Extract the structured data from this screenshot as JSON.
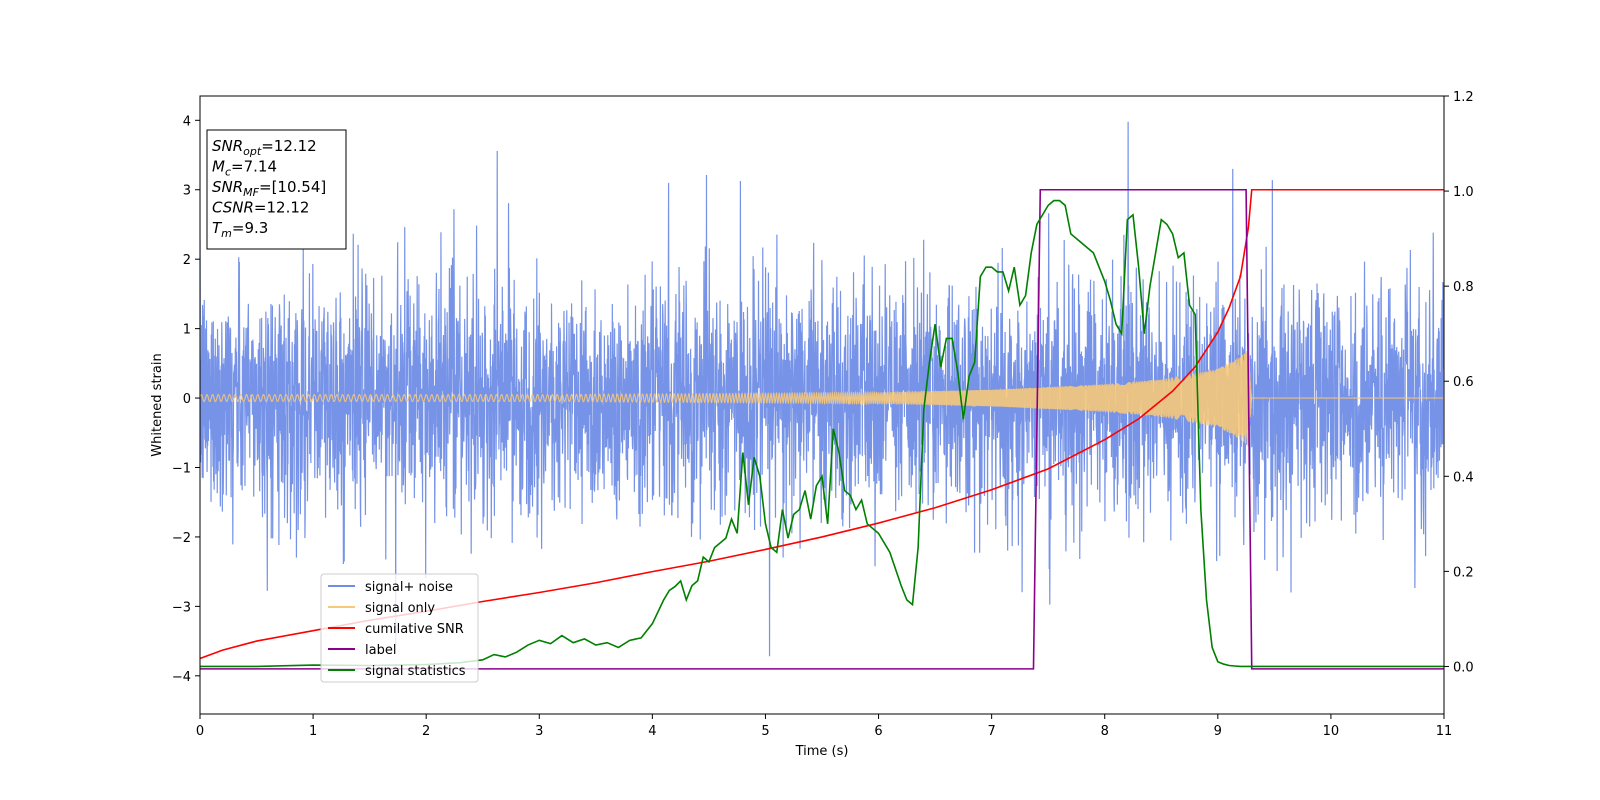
{
  "chart_data": {
    "type": "line",
    "xlabel": "Time (s)",
    "ylabel": "Whitened strain",
    "xlim": [
      0,
      11
    ],
    "ylim": [
      -4.55,
      4.35
    ],
    "y2lim": [
      -0.1,
      1.2
    ],
    "grid": false,
    "legend_position": "lower-left",
    "x_ticks": [
      0,
      1,
      2,
      3,
      4,
      5,
      6,
      7,
      8,
      9,
      10,
      11
    ],
    "y_ticks": [
      4,
      3,
      2,
      1,
      0,
      -1,
      -2,
      -3,
      -4
    ],
    "y_tick_labels": [
      "4",
      "3",
      "2",
      "1",
      "0",
      "−1",
      "−2",
      "−3",
      "−4"
    ],
    "y2_ticks": [
      1.2,
      1.0,
      0.8,
      0.6,
      0.4,
      0.2,
      0.0
    ],
    "y2_tick_labels": [
      "1.2",
      "1.0",
      "0.8",
      "0.6",
      "0.4",
      "0.2",
      "0.0"
    ],
    "annotation": {
      "lines": [
        {
          "base": "SNR",
          "sub": "opt",
          "rest": "=12.12"
        },
        {
          "base": "M",
          "sub": "c",
          "rest": "=7.14"
        },
        {
          "base": "SNR",
          "sub": "MF",
          "rest": "=[10.54]"
        },
        {
          "base": "CSNR",
          "sub": "",
          "rest": "=12.12"
        },
        {
          "base": "T",
          "sub": "m",
          "rest": "=9.3"
        }
      ]
    },
    "series": [
      {
        "name": "signal+ noise",
        "color": "#6f8de6",
        "axis": "left",
        "kind": "noise",
        "noise_std": 1.05,
        "noise_peak_max": 3.98,
        "noise_peak_min": -4.15
      },
      {
        "name": "signal only",
        "color": "#f6c87a",
        "axis": "left",
        "kind": "chirp",
        "envelope": [
          [
            0,
            0.05
          ],
          [
            3,
            0.05
          ],
          [
            6,
            0.08
          ],
          [
            7,
            0.12
          ],
          [
            8,
            0.2
          ],
          [
            8.5,
            0.27
          ],
          [
            9,
            0.42
          ],
          [
            9.2,
            0.6
          ],
          [
            9.27,
            0.7
          ],
          [
            9.3,
            0.0
          ],
          [
            11,
            0.0
          ]
        ]
      },
      {
        "name": "cumilative SNR",
        "color": "#ff0000",
        "axis": "left",
        "x": [
          0,
          0.2,
          0.5,
          1,
          1.5,
          2,
          2.5,
          3,
          3.5,
          4,
          4.5,
          5,
          5.5,
          6,
          6.5,
          7,
          7.5,
          8,
          8.3,
          8.6,
          8.8,
          9.0,
          9.1,
          9.2,
          9.27,
          9.3,
          11
        ],
        "y": [
          -3.75,
          -3.63,
          -3.5,
          -3.35,
          -3.2,
          -3.07,
          -2.93,
          -2.8,
          -2.66,
          -2.5,
          -2.35,
          -2.18,
          -2.0,
          -1.8,
          -1.58,
          -1.32,
          -1.02,
          -0.6,
          -0.3,
          0.1,
          0.45,
          0.95,
          1.3,
          1.75,
          2.45,
          3.0,
          3.0
        ]
      },
      {
        "name": "label",
        "color": "#8b008b",
        "axis": "left",
        "x": [
          0,
          7.37,
          7.43,
          9.25,
          9.3,
          11
        ],
        "y": [
          -3.9,
          -3.9,
          3.0,
          3.0,
          -3.9,
          -3.9
        ]
      },
      {
        "name": "signal statistics",
        "color": "#008000",
        "axis": "right",
        "x": [
          0,
          0.5,
          1,
          1.5,
          2,
          2.3,
          2.5,
          2.6,
          2.7,
          2.8,
          2.9,
          3.0,
          3.1,
          3.2,
          3.3,
          3.4,
          3.5,
          3.6,
          3.7,
          3.8,
          3.9,
          4.0,
          4.1,
          4.15,
          4.2,
          4.25,
          4.3,
          4.35,
          4.4,
          4.45,
          4.5,
          4.55,
          4.6,
          4.65,
          4.7,
          4.75,
          4.8,
          4.85,
          4.9,
          4.95,
          5.0,
          5.05,
          5.1,
          5.15,
          5.2,
          5.25,
          5.3,
          5.35,
          5.4,
          5.45,
          5.5,
          5.55,
          5.6,
          5.65,
          5.7,
          5.75,
          5.8,
          5.85,
          5.9,
          6.0,
          6.1,
          6.2,
          6.25,
          6.3,
          6.35,
          6.4,
          6.45,
          6.5,
          6.55,
          6.6,
          6.65,
          6.7,
          6.75,
          6.8,
          6.85,
          6.9,
          6.95,
          7.0,
          7.05,
          7.1,
          7.15,
          7.2,
          7.25,
          7.3,
          7.35,
          7.4,
          7.45,
          7.5,
          7.55,
          7.6,
          7.65,
          7.7,
          7.8,
          7.9,
          8.0,
          8.05,
          8.1,
          8.15,
          8.2,
          8.25,
          8.3,
          8.35,
          8.4,
          8.45,
          8.5,
          8.55,
          8.6,
          8.65,
          8.7,
          8.75,
          8.8,
          8.85,
          8.9,
          8.95,
          9.0,
          9.05,
          9.1,
          9.15,
          9.2,
          9.25,
          9.3,
          9.35,
          9.4,
          9.5,
          9.6,
          9.8,
          10,
          10.5,
          11
        ],
        "y": [
          0,
          0.0,
          0.003,
          0.002,
          0.004,
          0.008,
          0.014,
          0.025,
          0.02,
          0.03,
          0.045,
          0.055,
          0.048,
          0.065,
          0.05,
          0.058,
          0.045,
          0.05,
          0.04,
          0.055,
          0.06,
          0.09,
          0.14,
          0.16,
          0.168,
          0.18,
          0.14,
          0.17,
          0.18,
          0.23,
          0.22,
          0.25,
          0.26,
          0.27,
          0.31,
          0.28,
          0.45,
          0.34,
          0.44,
          0.4,
          0.3,
          0.25,
          0.24,
          0.33,
          0.27,
          0.32,
          0.33,
          0.37,
          0.31,
          0.38,
          0.4,
          0.3,
          0.5,
          0.45,
          0.37,
          0.36,
          0.33,
          0.35,
          0.3,
          0.28,
          0.24,
          0.17,
          0.14,
          0.13,
          0.25,
          0.54,
          0.64,
          0.72,
          0.63,
          0.69,
          0.69,
          0.62,
          0.52,
          0.61,
          0.64,
          0.82,
          0.84,
          0.84,
          0.83,
          0.83,
          0.79,
          0.84,
          0.76,
          0.78,
          0.87,
          0.93,
          0.95,
          0.97,
          0.98,
          0.98,
          0.97,
          0.91,
          0.89,
          0.87,
          0.81,
          0.77,
          0.72,
          0.7,
          0.94,
          0.95,
          0.84,
          0.7,
          0.8,
          0.87,
          0.94,
          0.93,
          0.91,
          0.86,
          0.87,
          0.76,
          0.74,
          0.33,
          0.14,
          0.04,
          0.01,
          0.005,
          0.002,
          0.001,
          0.0,
          0.0,
          0.0,
          0.0,
          0.0,
          0.0,
          0.0,
          0.0,
          0.0,
          0.0,
          0.0
        ]
      }
    ]
  }
}
